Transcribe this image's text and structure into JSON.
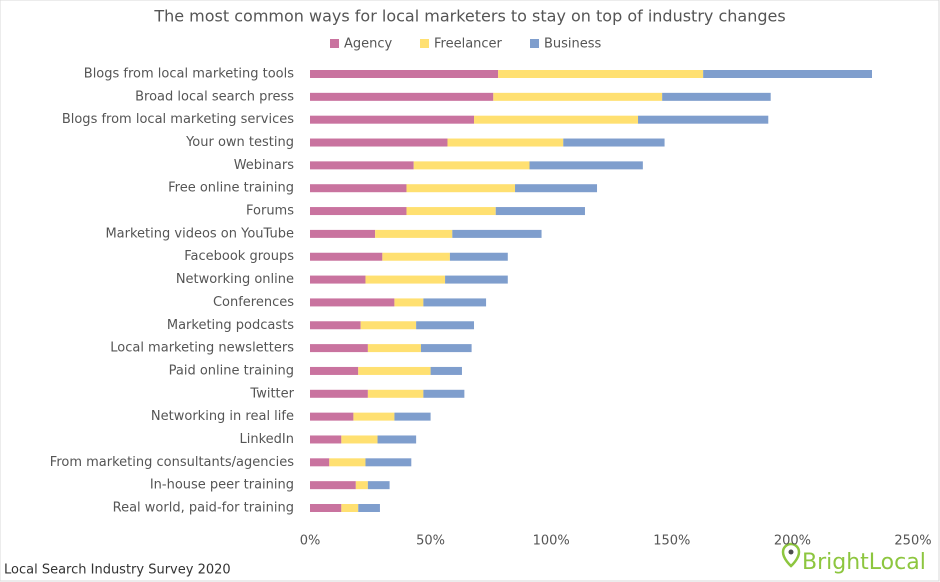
{
  "chart_data": {
    "type": "bar",
    "orientation": "horizontal",
    "stacked": true,
    "title": "The most common ways for local marketers to stay on top of industry changes",
    "categories": [
      "Blogs from local marketing tools",
      "Broad local search press",
      "Blogs from local marketing services",
      "Your own testing",
      "Webinars",
      "Free online training",
      "Forums",
      "Marketing videos on YouTube",
      "Facebook groups",
      "Networking online",
      "Conferences",
      "Marketing podcasts",
      "Local marketing newsletters",
      "Paid online training",
      "Twitter",
      "Networking in real life",
      "LinkedIn",
      "From marketing consultants/agencies",
      "In-house peer training",
      "Real world, paid-for training"
    ],
    "series": [
      {
        "name": "Agency",
        "color": "#c9739f",
        "values": [
          78,
          76,
          68,
          57,
          43,
          40,
          40,
          27,
          30,
          23,
          35,
          21,
          24,
          20,
          24,
          18,
          13,
          8,
          19,
          13
        ]
      },
      {
        "name": "Freelancer",
        "color": "#ffe071",
        "values": [
          85,
          70,
          68,
          48,
          48,
          45,
          37,
          32,
          28,
          33,
          12,
          23,
          22,
          30,
          23,
          17,
          15,
          15,
          5,
          7
        ]
      },
      {
        "name": "Business",
        "color": "#7f9ecd",
        "values": [
          70,
          45,
          54,
          42,
          47,
          34,
          37,
          37,
          24,
          26,
          26,
          24,
          21,
          13,
          17,
          15,
          16,
          19,
          9,
          9
        ]
      }
    ],
    "xlim": [
      0,
      250
    ],
    "xticks": [
      {
        "value": 0,
        "label": "0%"
      },
      {
        "value": 50,
        "label": "50%"
      },
      {
        "value": 100,
        "label": "100%"
      },
      {
        "value": 150,
        "label": "150%"
      },
      {
        "value": 200,
        "label": "200%"
      },
      {
        "value": 250,
        "label": "250%"
      }
    ],
    "grid": false,
    "legend": "top",
    "source": "Local Search Industry Survey 2020",
    "brand": "BrightLocal"
  }
}
